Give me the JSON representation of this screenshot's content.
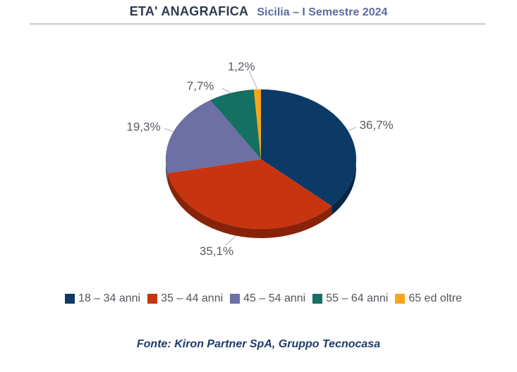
{
  "header": {
    "title": "ETA' ANAGRAFICA",
    "subtitle": "Sicilia – I Semestre 2024"
  },
  "chart_data": {
    "type": "pie",
    "style": "3d",
    "title": "ETA' ANAGRAFICA",
    "subtitle": "Sicilia – I Semestre 2024",
    "start_angle_deg": 0,
    "direction": "clockwise",
    "legend_position": "bottom",
    "slices": [
      {
        "label": "18 – 34 anni",
        "value": 36.7,
        "display": "36,7%",
        "color": "#0B3A67"
      },
      {
        "label": "35 – 44 anni",
        "value": 35.1,
        "display": "35,1%",
        "color": "#C8340F"
      },
      {
        "label": "45 – 54 anni",
        "value": 19.3,
        "display": "19,3%",
        "color": "#6E6FA5"
      },
      {
        "label": "55 – 64 anni",
        "value": 7.7,
        "display": "7,7%",
        "color": "#147063"
      },
      {
        "label": "65 ed oltre",
        "value": 1.2,
        "display": "1,2%",
        "color": "#F8A51B"
      }
    ]
  },
  "footer": {
    "source": "Fonte: Kiron Partner SpA, Gruppo Tecnocasa"
  }
}
